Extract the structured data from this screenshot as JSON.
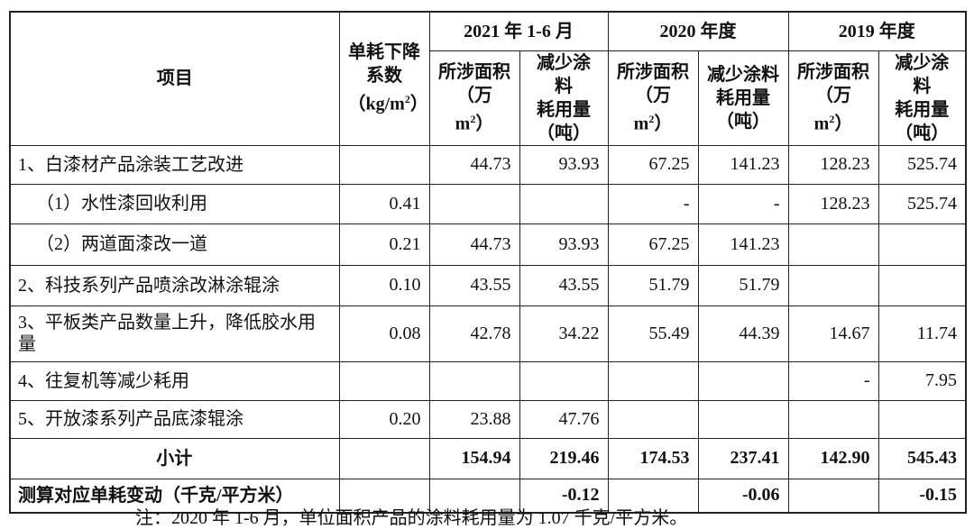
{
  "header": {
    "item": "项目",
    "coef": [
      "单耗下降",
      "系数",
      "（kg/m",
      "2",
      "）"
    ],
    "periods": [
      {
        "label": "2021 年 1-6 月",
        "area": [
          "所涉面积",
          "（万 m",
          "2",
          "）"
        ],
        "reduce": [
          "减少涂料",
          "耗用量",
          "（吨）"
        ]
      },
      {
        "label": "2020 年度",
        "area": [
          "所涉面积",
          "（万 m",
          "2",
          "）"
        ],
        "reduce": [
          "减少涂料",
          "耗用量",
          "（吨）"
        ]
      },
      {
        "label": "2019 年度",
        "area": [
          "所涉面积",
          "（万 m",
          "2",
          "）"
        ],
        "reduce": [
          "减少涂料",
          "耗用量",
          "（吨）"
        ]
      }
    ]
  },
  "table": {
    "rows": [
      [
        "1、白漆材产品涂装工艺改进",
        null,
        "44.73",
        "93.93",
        "67.25",
        "141.23",
        "128.23",
        "525.74"
      ],
      [
        "（1）水性漆回收利用",
        "0.41",
        null,
        null,
        "-",
        "-",
        "128.23",
        "525.74"
      ],
      [
        "（2）两道面漆改一道",
        "0.21",
        "44.73",
        "93.93",
        "67.25",
        "141.23",
        null,
        null
      ],
      [
        "2、科技系列产品喷涂改淋涂辊涂",
        "0.10",
        "43.55",
        "43.55",
        "51.79",
        "51.79",
        null,
        null
      ],
      [
        "3、平板类产品数量上升，降低胶水用量",
        "0.08",
        "42.78",
        "34.22",
        "55.49",
        "44.39",
        "14.67",
        "11.74"
      ],
      [
        "4、往复机等减少耗用",
        null,
        null,
        null,
        null,
        null,
        "-",
        "7.95"
      ],
      [
        "5、开放漆系列产品底漆辊涂",
        "0.20",
        "23.88",
        "47.76",
        null,
        null,
        null,
        null
      ],
      [
        "小计",
        null,
        "154.94",
        "219.46",
        "174.53",
        "237.41",
        "142.90",
        "545.43"
      ],
      [
        "测算对应单耗变动（千克/平方米）",
        null,
        null,
        "-0.12",
        null,
        "-0.06",
        null,
        "-0.15"
      ]
    ]
  },
  "footnote": "注：2020 年 1-6 月，单位面积产品的涂料耗用量为 1.07 千克/平方米。"
}
